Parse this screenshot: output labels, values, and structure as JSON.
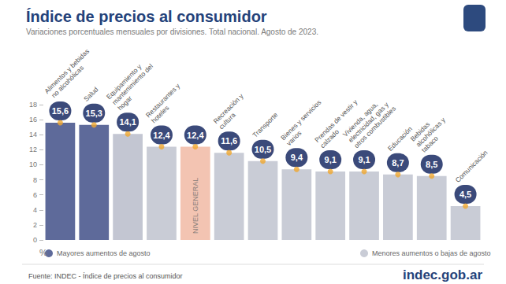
{
  "chart_data": {
    "type": "bar",
    "title": "Índice de precios al consumidor",
    "subtitle": "Variaciones porcentuales mensuales por divisiones. Total nacional. Agosto de 2023.",
    "categories": [
      "Alimentos y bebidas no alcohólicas",
      "Salud",
      "Equipamiento y mantenimiento del hogar",
      "Restaurantes y hoteles",
      "NIVEL GENERAL",
      "Recreación y cultura",
      "Transporte",
      "Bienes y servicios varios",
      "Prendas de vestir y calzado",
      "Vivienda, agua, electricidad, gas y otros combustibles",
      "Educación",
      "Bebidas alcohólicas y tabaco",
      "Comunicación"
    ],
    "values": [
      15.6,
      15.3,
      14.1,
      12.4,
      12.4,
      11.6,
      10.5,
      9.4,
      9.1,
      9.1,
      8.7,
      8.5,
      4.5
    ],
    "value_labels": [
      "15,6",
      "15,3",
      "14,1",
      "12,4",
      "12,4",
      "11,6",
      "10,5",
      "9,4",
      "9,1",
      "9,1",
      "8,7",
      "8,5",
      "4,5"
    ],
    "colors": [
      "#5e6a9a",
      "#5e6a9a",
      "#c3c6d2",
      "#c9ccd6",
      "#f3c4b2",
      "#c9ccd6",
      "#c9ccd6",
      "#c9ccd6",
      "#c9ccd6",
      "#c9ccd6",
      "#c9ccd6",
      "#c9ccd6",
      "#c9ccd6"
    ],
    "y_label": "%",
    "ylim": [
      0,
      18
    ],
    "yticks": [
      0,
      2,
      4,
      6,
      8,
      10,
      12,
      14,
      16,
      18
    ],
    "grid": false,
    "data_labels": true,
    "legend_items": [
      {
        "label": "Mayores aumentos de agosto",
        "color": "#5e6a9a"
      },
      {
        "label": "Menores aumentos o bajas de agosto",
        "color": "#c9ccd6"
      }
    ],
    "source": "Fuente: INDEC - Índice de precios al consumidor",
    "brand": "indec.gob.ar"
  }
}
